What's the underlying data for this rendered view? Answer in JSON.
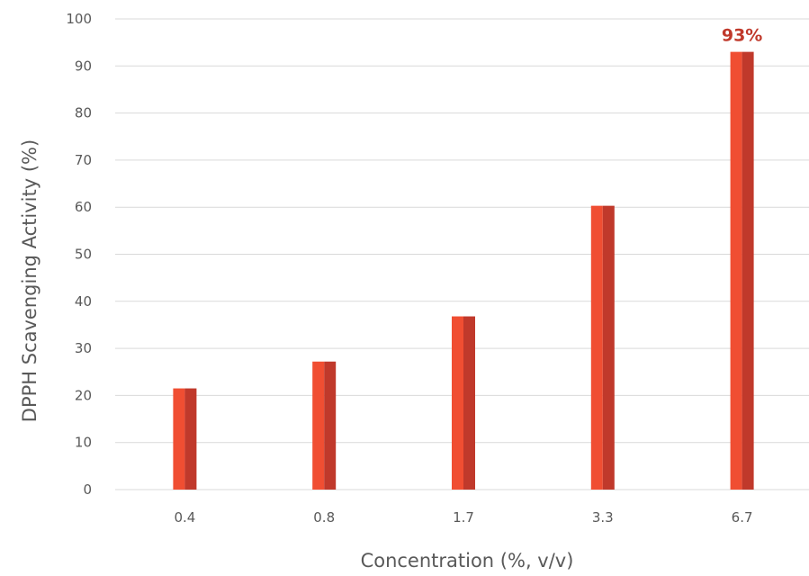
{
  "chart_data": {
    "type": "bar",
    "categories": [
      "0.4",
      "0.8",
      "1.7",
      "3.3",
      "6.7"
    ],
    "values": [
      21.5,
      27.2,
      36.8,
      60.3,
      93
    ],
    "title": "",
    "xlabel": "Concentration (%, v/v)",
    "ylabel": "DPPH Scavenging Activity (%)",
    "ylim": [
      0,
      100
    ],
    "yticks": [
      0,
      10,
      20,
      30,
      40,
      50,
      60,
      70,
      80,
      90,
      100
    ],
    "grid": true,
    "legend": "none",
    "data_labels": [
      {
        "category": "6.7",
        "text": "93%"
      }
    ],
    "colors": {
      "bar_light": "#f04e32",
      "bar_dark": "#c0392b",
      "data_label": "#c0392b",
      "grid": "#d9d9d9",
      "text": "#595959"
    }
  }
}
